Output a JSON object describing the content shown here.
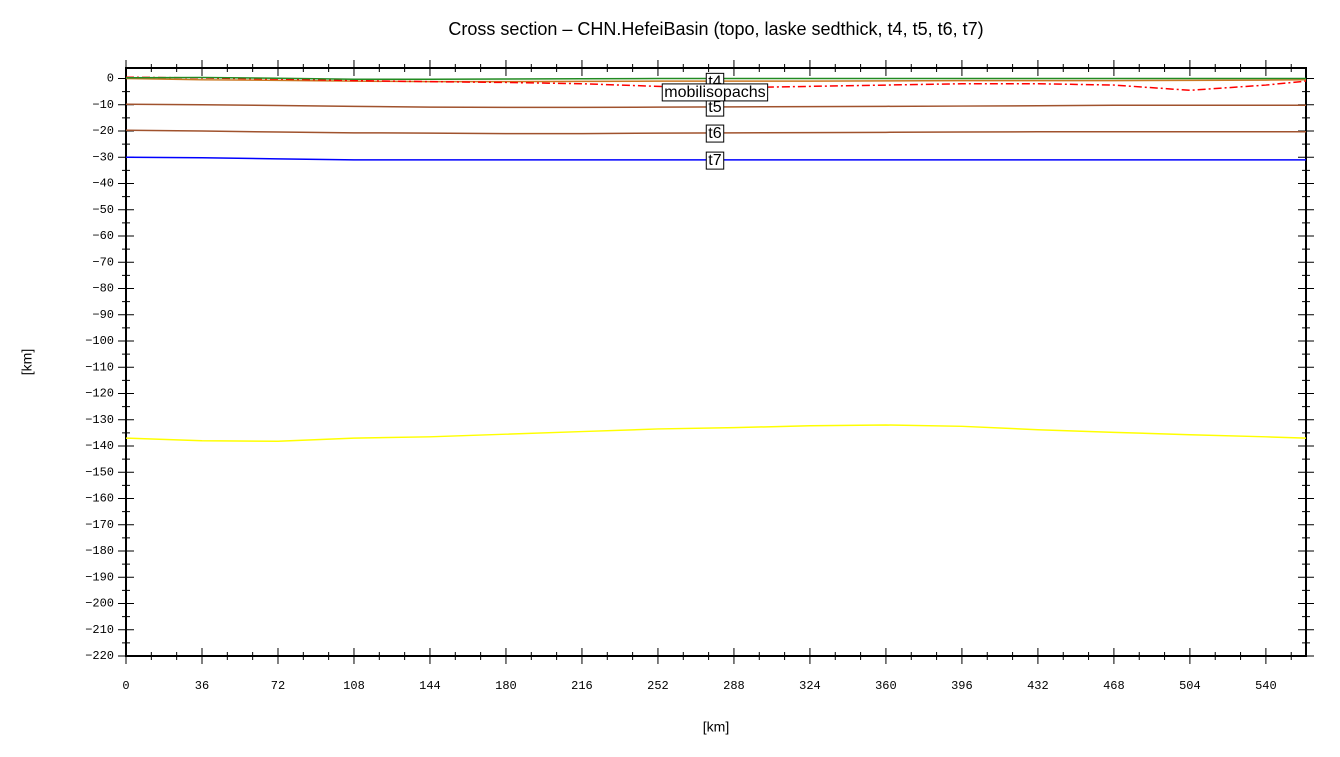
{
  "chart_data": {
    "type": "line",
    "title": "Cross section – CHN.HefeiBasin (topo, laske sedthick, t4, t5, t6, t7)",
    "x_label": "[km]",
    "y_label": "[km]",
    "x": [
      0,
      36,
      72,
      108,
      144,
      180,
      216,
      252,
      288,
      324,
      360,
      396,
      432,
      468,
      504,
      540,
      559
    ],
    "series": [
      {
        "color": "#ffff00",
        "values": [
          -137,
          -138,
          -138.2,
          -137,
          -136.5,
          -135.5,
          -134.5,
          -133.5,
          -133,
          -132.3,
          -132,
          -132.5,
          -133.8,
          -134.8,
          -135.7,
          -136.5,
          -137
        ]
      },
      {
        "name": "t7",
        "color": "#0000ff",
        "values": [
          -30,
          -30.2,
          -30.6,
          -31,
          -31,
          -31,
          -31,
          -31,
          -31,
          -31,
          -31,
          -31,
          -31,
          -31,
          -31,
          -31,
          -31
        ]
      },
      {
        "name": "t6",
        "color": "#a0522d",
        "values": [
          -19.7,
          -20,
          -20.4,
          -20.7,
          -20.8,
          -21,
          -21,
          -20.8,
          -20.7,
          -20.6,
          -20.5,
          -20.4,
          -20.3,
          -20.3,
          -20.3,
          -20.3,
          -20.3
        ]
      },
      {
        "name": "t5",
        "color": "#a0522d",
        "values": [
          -9.8,
          -10,
          -10.3,
          -10.6,
          -10.9,
          -11,
          -11,
          -10.9,
          -10.8,
          -10.7,
          -10.6,
          -10.5,
          -10.4,
          -10.2,
          -10.2,
          -10.2,
          -10.2
        ]
      },
      {
        "name": "t4",
        "color": "#cc7722",
        "values": [
          0,
          -0.5,
          -0.7,
          -1,
          -1.2,
          -1.2,
          -1.1,
          -1,
          -1,
          -1,
          -0.9,
          -0.8,
          -0.8,
          -0.8,
          -0.7,
          -0.6,
          -0.5
        ]
      },
      {
        "name": "mobilisopachs",
        "color": "#ff0000",
        "dash": "8,3,2,3",
        "values": [
          0.5,
          0.2,
          -0.2,
          -0.8,
          -1.2,
          -1.5,
          -2,
          -3,
          -3.5,
          -3,
          -2.5,
          -2,
          -2,
          -2.5,
          -4.5,
          -2.5,
          -1
        ]
      },
      {
        "color": "#228b22",
        "values": [
          0.3,
          0.4,
          0.1,
          -0.3,
          -0.3,
          -0.2,
          -0.1,
          0,
          0,
          0,
          0,
          0,
          0,
          0,
          0,
          0,
          0
        ]
      }
    ],
    "label_x_index": 8,
    "xlim": [
      0,
      559
    ],
    "ylim": [
      -220,
      4
    ],
    "xticks": [
      0,
      36,
      72,
      108,
      144,
      180,
      216,
      252,
      288,
      324,
      360,
      396,
      432,
      468,
      504,
      540
    ],
    "yticks": [
      0,
      {
        "value": -10,
        "label": "−10"
      },
      {
        "value": -20,
        "label": "−20"
      },
      {
        "value": -30,
        "label": "−30"
      },
      {
        "value": -40,
        "label": "−40"
      },
      {
        "value": -50,
        "label": "−50"
      },
      {
        "value": -60,
        "label": "−60"
      },
      {
        "value": -70,
        "label": "−70"
      },
      {
        "value": -80,
        "label": "−80"
      },
      {
        "value": -90,
        "label": "−90"
      },
      {
        "value": -100,
        "label": "−100"
      },
      {
        "value": -110,
        "label": "−110"
      },
      {
        "value": -120,
        "label": "−120"
      },
      {
        "value": -130,
        "label": "−130"
      },
      {
        "value": -140,
        "label": "−140"
      },
      {
        "value": -150,
        "label": "−150"
      },
      {
        "value": -160,
        "label": "−160"
      },
      {
        "value": -170,
        "label": "−170"
      },
      {
        "value": -180,
        "label": "−180"
      },
      {
        "value": -190,
        "label": "−190"
      },
      {
        "value": -200,
        "label": "−200"
      },
      {
        "value": -210,
        "label": "−210"
      },
      {
        "value": -220,
        "label": "−220"
      }
    ]
  }
}
